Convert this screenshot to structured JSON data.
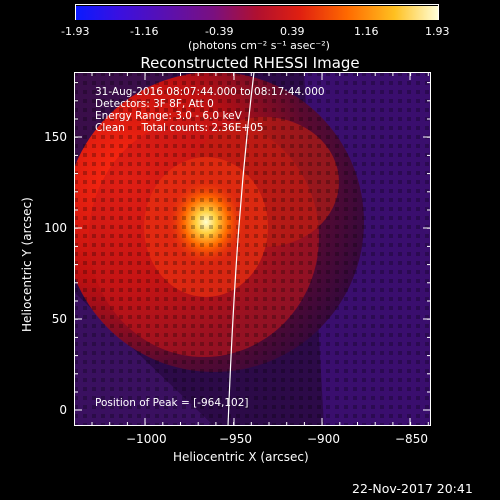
{
  "colorbar": {
    "tick_labels": [
      "-1.93",
      "-1.16",
      "-0.39",
      "0.39",
      "1.16",
      "1.93"
    ],
    "unit": "(photons cm⁻² s⁻¹ asec⁻²)"
  },
  "title": "Reconstructed RHESSI Image",
  "info": {
    "time": "31-Aug-2016 08:07:44.000 to 08:17:44.000",
    "detectors": "Detectors: 3F 8F, Att 0",
    "energy": "Energy Range: 3.0 - 6.0 keV",
    "clean": "Clean     Total counts: 2.36E+05",
    "peak": "Position of Peak = [-964,102]"
  },
  "axes": {
    "xlabel": "Heliocentric X (arcsec)",
    "ylabel": "Heliocentric Y (arcsec)",
    "x_ticks": [
      "−1000",
      "−950",
      "−900",
      "−850"
    ],
    "y_ticks": [
      "0",
      "50",
      "100",
      "150"
    ]
  },
  "footer_date": "22-Nov-2017 20:41",
  "colors": {
    "background": "#000000",
    "text": "#ffffff"
  }
}
